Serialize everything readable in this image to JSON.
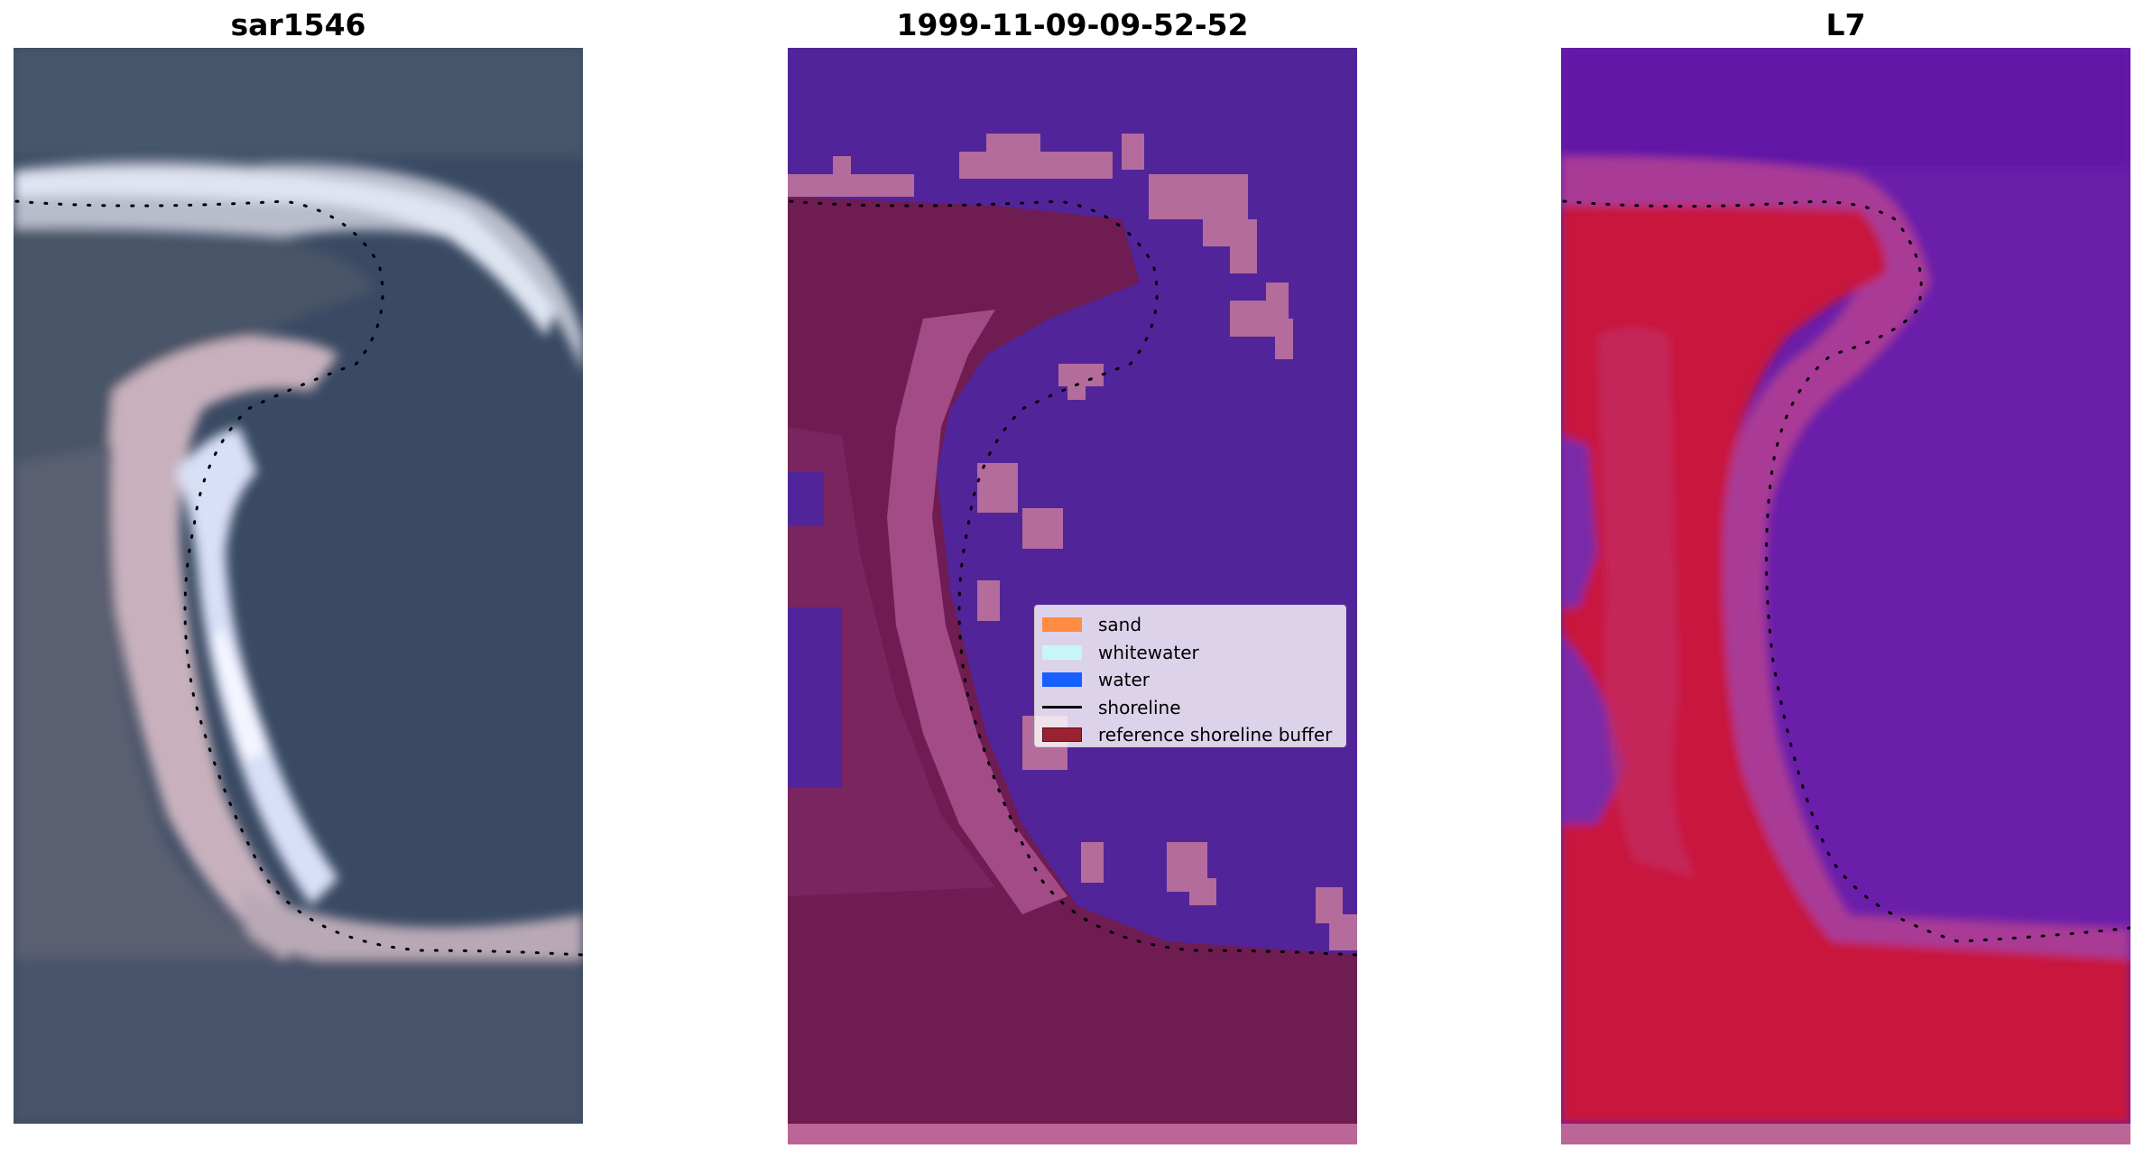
{
  "panels": {
    "rgb": {
      "title": "sar1546"
    },
    "classified": {
      "title": "1999-11-09-09-52-52"
    },
    "mndwi": {
      "title": "L7"
    }
  },
  "legend": {
    "entries": [
      {
        "label": "sand",
        "kind": "patch",
        "color": "#ff8c42"
      },
      {
        "label": "whitewater",
        "kind": "patch",
        "color": "#c8f5f5"
      },
      {
        "label": "water",
        "kind": "patch",
        "color": "#1560ff"
      },
      {
        "label": "shoreline",
        "kind": "line",
        "color": "#000000"
      },
      {
        "label": "reference shoreline buffer",
        "kind": "patch",
        "color": "#9b2331",
        "edge": "#5a0f1a"
      }
    ]
  },
  "colors": {
    "rgb_deep_water": "#3a4a63",
    "rgb_sand": "#c8b4c0",
    "rgb_whitewater": "#dde4f5",
    "class_background": "#52249a",
    "class_land": "#6e1c52",
    "class_land_light": "#b36c9c",
    "mndwi_water": "#6a1eaa",
    "mndwi_land": "#c8143c",
    "shoreline_dots": "#000000"
  }
}
